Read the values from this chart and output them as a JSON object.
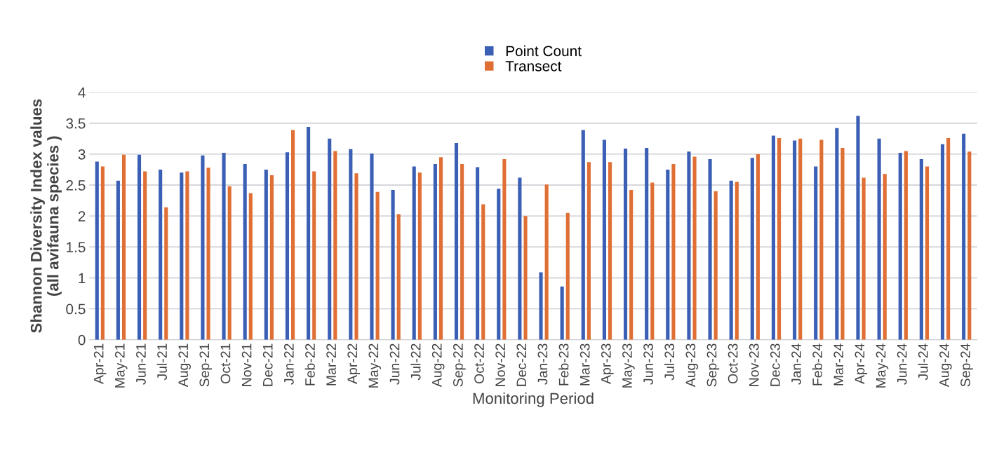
{
  "chart_data": {
    "type": "bar",
    "xlabel": "Monitoring Period",
    "ylabel": "Shannon Diversity Index values\n(all avifauna species )",
    "categories": [
      "Apr-21",
      "May-21",
      "Jun-21",
      "Jul-21",
      "Aug-21",
      "Sep-21",
      "Oct-21",
      "Nov-21",
      "Dec-21",
      "Jan-22",
      "Feb-22",
      "Mar-22",
      "Apr-22",
      "May-22",
      "Jun-22",
      "Jul-22",
      "Aug-22",
      "Sep-22",
      "Oct-22",
      "Nov-22",
      "Dec-22",
      "Jan-23",
      "Feb-23",
      "Mar-23",
      "Apr-23",
      "May-23",
      "Jun-23",
      "Jul-23",
      "Aug-23",
      "Sep-23",
      "Oct-23",
      "Nov-23",
      "Dec-23",
      "Jan-24",
      "Feb-24",
      "Mar-24",
      "Apr-24",
      "May-24",
      "Jun-24",
      "Jul-24",
      "Aug-24",
      "Sep-24"
    ],
    "series": [
      {
        "name": "Point Count",
        "color": "#3a5fb5",
        "values": [
          2.88,
          2.57,
          2.99,
          2.75,
          2.7,
          2.98,
          3.02,
          2.84,
          2.75,
          3.03,
          3.44,
          3.25,
          3.08,
          3.01,
          2.42,
          2.8,
          2.84,
          3.18,
          2.79,
          2.44,
          2.62,
          1.09,
          0.86,
          3.39,
          3.23,
          3.09,
          3.1,
          2.75,
          3.04,
          2.92,
          2.57,
          2.94,
          3.3,
          3.22,
          2.8,
          3.42,
          3.62,
          3.25,
          3.02,
          2.92,
          3.16,
          3.33
        ]
      },
      {
        "name": "Transect",
        "color": "#e06f35",
        "values": [
          2.8,
          2.99,
          2.72,
          2.14,
          2.72,
          2.78,
          2.48,
          2.37,
          2.66,
          3.39,
          2.72,
          3.05,
          2.69,
          2.39,
          2.03,
          2.7,
          2.95,
          2.84,
          2.19,
          2.92,
          2.0,
          2.51,
          2.05,
          2.87,
          2.87,
          2.42,
          2.54,
          2.84,
          2.96,
          2.4,
          2.55,
          3.0,
          3.26,
          3.25,
          3.23,
          3.1,
          2.62,
          2.68,
          3.05,
          2.8,
          3.26,
          3.04
        ]
      }
    ],
    "ylim": [
      0,
      4
    ],
    "yticks": [
      0,
      0.5,
      1,
      1.5,
      2,
      2.5,
      3,
      3.5,
      4
    ],
    "grid": "y",
    "legend": "top"
  }
}
